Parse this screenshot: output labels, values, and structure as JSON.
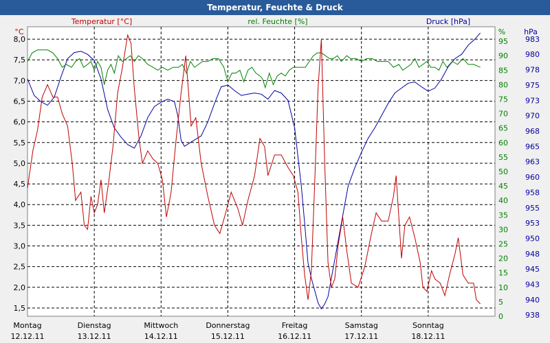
{
  "title": "Temperatur, Feuchte & Druck",
  "colors": {
    "titlebar": "#295a99",
    "temperature": "#c00000",
    "humidity": "#008000",
    "pressure": "#0000a0",
    "grid": "#000000",
    "text": "#000000"
  },
  "chart_data": {
    "type": "line",
    "title": "Temperatur, Feuchte & Druck",
    "grid": true,
    "x_labels": [
      {
        "day": "Montag",
        "date": "12.12.11"
      },
      {
        "day": "Dienstag",
        "date": "13.12.11"
      },
      {
        "day": "Mittwoch",
        "date": "14.12.11"
      },
      {
        "day": "Donnerstag",
        "date": "15.12.11"
      },
      {
        "day": "Freitag",
        "date": "16.12.11"
      },
      {
        "day": "Samstag",
        "date": "17.12.11"
      },
      {
        "day": "Sonntag",
        "date": "18.12.11"
      }
    ],
    "x_range_days": [
      0,
      7
    ],
    "axes": {
      "temperature": {
        "label": "Temperatur [°C]",
        "unit": "°C",
        "range": [
          1.3,
          8.3
        ],
        "ticks": [
          "8,0",
          "7,5",
          "7,0",
          "6,5",
          "6,0",
          "5,5",
          "5,0",
          "4,5",
          "4,0",
          "3,5",
          "3,0",
          "2,5",
          "2,0",
          "1,5"
        ],
        "tick_values": [
          8.0,
          7.5,
          7.0,
          6.5,
          6.0,
          5.5,
          5.0,
          4.5,
          4.0,
          3.5,
          3.0,
          2.5,
          2.0,
          1.5
        ]
      },
      "humidity": {
        "label": "rel. Feuchte [%]",
        "unit": "%",
        "range": [
          0,
          100
        ],
        "ticks": [
          "95",
          "90",
          "85",
          "80",
          "75",
          "70",
          "65",
          "60",
          "55",
          "50",
          "45",
          "40",
          "35",
          "30",
          "25",
          "20",
          "15",
          "10",
          "5",
          "0"
        ],
        "tick_values": [
          95,
          90,
          85,
          80,
          75,
          70,
          65,
          60,
          55,
          50,
          45,
          40,
          35,
          30,
          25,
          20,
          15,
          10,
          5,
          0
        ]
      },
      "pressure": {
        "label": "Druck [hPa]",
        "unit": "hPa",
        "range": [
          937.8,
          985
        ],
        "ticks": [
          "983",
          "980",
          "978",
          "975",
          "973",
          "970",
          "968",
          "965",
          "963",
          "960",
          "958",
          "955",
          "953",
          "950",
          "948",
          "945",
          "943",
          "940",
          "938"
        ],
        "tick_values": [
          983,
          980.5,
          978,
          975.5,
          973,
          970.5,
          968,
          965.5,
          963,
          960.5,
          958,
          955.5,
          953,
          950.5,
          948,
          945.5,
          943,
          940.5,
          938
        ]
      }
    },
    "series": [
      {
        "name": "Temperatur [°C]",
        "axis": "temperature",
        "points": [
          [
            0,
            4.4
          ],
          [
            0.08,
            5.3
          ],
          [
            0.15,
            5.8
          ],
          [
            0.22,
            6.6
          ],
          [
            0.3,
            6.9
          ],
          [
            0.38,
            6.6
          ],
          [
            0.45,
            6.6
          ],
          [
            0.52,
            6.2
          ],
          [
            0.6,
            5.9
          ],
          [
            0.67,
            5.0
          ],
          [
            0.72,
            4.1
          ],
          [
            0.8,
            4.3
          ],
          [
            0.85,
            3.5
          ],
          [
            0.9,
            3.4
          ],
          [
            0.95,
            4.2
          ],
          [
            1.0,
            3.8
          ],
          [
            1.05,
            4.0
          ],
          [
            1.1,
            4.6
          ],
          [
            1.15,
            3.8
          ],
          [
            1.22,
            4.6
          ],
          [
            1.28,
            5.4
          ],
          [
            1.35,
            6.7
          ],
          [
            1.42,
            7.3
          ],
          [
            1.5,
            8.1
          ],
          [
            1.55,
            7.9
          ],
          [
            1.6,
            6.8
          ],
          [
            1.67,
            5.6
          ],
          [
            1.72,
            5.0
          ],
          [
            1.8,
            5.3
          ],
          [
            1.88,
            5.1
          ],
          [
            1.95,
            5.0
          ],
          [
            2.02,
            4.6
          ],
          [
            2.08,
            3.7
          ],
          [
            2.15,
            4.3
          ],
          [
            2.22,
            5.5
          ],
          [
            2.3,
            6.7
          ],
          [
            2.37,
            7.6
          ],
          [
            2.45,
            5.9
          ],
          [
            2.52,
            6.1
          ],
          [
            2.6,
            5.0
          ],
          [
            2.7,
            4.2
          ],
          [
            2.8,
            3.5
          ],
          [
            2.88,
            3.3
          ],
          [
            2.95,
            3.7
          ],
          [
            3.05,
            4.3
          ],
          [
            3.15,
            3.9
          ],
          [
            3.22,
            3.5
          ],
          [
            3.3,
            4.1
          ],
          [
            3.4,
            4.7
          ],
          [
            3.48,
            5.6
          ],
          [
            3.55,
            5.4
          ],
          [
            3.6,
            4.7
          ],
          [
            3.7,
            5.2
          ],
          [
            3.8,
            5.2
          ],
          [
            3.9,
            4.9
          ],
          [
            3.98,
            4.7
          ],
          [
            4.05,
            4.3
          ],
          [
            4.1,
            3.2
          ],
          [
            4.15,
            2.3
          ],
          [
            4.2,
            1.7
          ],
          [
            4.25,
            2.4
          ],
          [
            4.3,
            4.5
          ],
          [
            4.35,
            6.8
          ],
          [
            4.4,
            8.0
          ],
          [
            4.45,
            5.0
          ],
          [
            4.5,
            2.6
          ],
          [
            4.55,
            2.0
          ],
          [
            4.6,
            2.2
          ],
          [
            4.65,
            3.0
          ],
          [
            4.72,
            3.7
          ],
          [
            4.78,
            2.9
          ],
          [
            4.85,
            2.1
          ],
          [
            4.95,
            2.0
          ],
          [
            5.05,
            2.5
          ],
          [
            5.15,
            3.3
          ],
          [
            5.22,
            3.8
          ],
          [
            5.3,
            3.6
          ],
          [
            5.4,
            3.6
          ],
          [
            5.48,
            4.2
          ],
          [
            5.52,
            4.7
          ],
          [
            5.6,
            2.7
          ],
          [
            5.65,
            3.5
          ],
          [
            5.72,
            3.7
          ],
          [
            5.8,
            3.2
          ],
          [
            5.88,
            2.6
          ],
          [
            5.92,
            2.0
          ],
          [
            5.98,
            1.9
          ],
          [
            6.05,
            2.4
          ],
          [
            6.1,
            2.2
          ],
          [
            6.18,
            2.1
          ],
          [
            6.25,
            1.8
          ],
          [
            6.32,
            2.3
          ],
          [
            6.4,
            2.8
          ],
          [
            6.45,
            3.2
          ],
          [
            6.52,
            2.3
          ],
          [
            6.6,
            2.1
          ],
          [
            6.68,
            2.1
          ],
          [
            6.72,
            1.7
          ],
          [
            6.78,
            1.6
          ]
        ]
      },
      {
        "name": "rel. Feuchte [%]",
        "axis": "humidity",
        "points": [
          [
            0,
            88
          ],
          [
            0.07,
            91
          ],
          [
            0.15,
            92
          ],
          [
            0.22,
            92
          ],
          [
            0.3,
            92
          ],
          [
            0.38,
            91
          ],
          [
            0.45,
            89
          ],
          [
            0.52,
            86
          ],
          [
            0.58,
            87
          ],
          [
            0.66,
            86
          ],
          [
            0.72,
            88
          ],
          [
            0.78,
            89
          ],
          [
            0.84,
            86
          ],
          [
            0.9,
            87
          ],
          [
            0.95,
            88
          ],
          [
            1.0,
            85
          ],
          [
            1.05,
            88
          ],
          [
            1.1,
            86
          ],
          [
            1.15,
            80
          ],
          [
            1.2,
            85
          ],
          [
            1.25,
            87
          ],
          [
            1.3,
            84
          ],
          [
            1.36,
            90
          ],
          [
            1.42,
            88
          ],
          [
            1.48,
            89
          ],
          [
            1.54,
            90
          ],
          [
            1.6,
            88
          ],
          [
            1.66,
            90
          ],
          [
            1.72,
            89
          ],
          [
            1.8,
            87
          ],
          [
            1.88,
            86
          ],
          [
            1.95,
            85
          ],
          [
            2.02,
            86
          ],
          [
            2.1,
            85
          ],
          [
            2.18,
            86
          ],
          [
            2.26,
            86
          ],
          [
            2.32,
            87
          ],
          [
            2.38,
            84
          ],
          [
            2.44,
            88
          ],
          [
            2.5,
            86
          ],
          [
            2.56,
            87
          ],
          [
            2.62,
            88
          ],
          [
            2.7,
            88
          ],
          [
            2.78,
            89
          ],
          [
            2.86,
            89
          ],
          [
            2.94,
            86
          ],
          [
            3.0,
            81
          ],
          [
            3.06,
            84
          ],
          [
            3.12,
            84
          ],
          [
            3.18,
            85
          ],
          [
            3.24,
            81
          ],
          [
            3.3,
            85
          ],
          [
            3.36,
            86
          ],
          [
            3.42,
            84
          ],
          [
            3.48,
            83
          ],
          [
            3.52,
            82
          ],
          [
            3.56,
            79
          ],
          [
            3.62,
            84
          ],
          [
            3.68,
            80
          ],
          [
            3.74,
            83
          ],
          [
            3.8,
            84
          ],
          [
            3.86,
            83
          ],
          [
            3.92,
            85
          ],
          [
            3.98,
            86
          ],
          [
            4.04,
            86
          ],
          [
            4.1,
            86
          ],
          [
            4.16,
            86
          ],
          [
            4.22,
            88
          ],
          [
            4.28,
            90
          ],
          [
            4.34,
            91
          ],
          [
            4.4,
            91
          ],
          [
            4.46,
            90
          ],
          [
            4.52,
            89
          ],
          [
            4.58,
            89
          ],
          [
            4.64,
            90
          ],
          [
            4.7,
            88
          ],
          [
            4.78,
            90
          ],
          [
            4.84,
            89
          ],
          [
            4.92,
            89
          ],
          [
            5.0,
            88
          ],
          [
            5.08,
            89
          ],
          [
            5.16,
            89
          ],
          [
            5.24,
            88
          ],
          [
            5.32,
            88
          ],
          [
            5.4,
            88
          ],
          [
            5.48,
            86
          ],
          [
            5.56,
            87
          ],
          [
            5.62,
            85
          ],
          [
            5.68,
            86
          ],
          [
            5.74,
            87
          ],
          [
            5.8,
            89
          ],
          [
            5.86,
            86
          ],
          [
            5.92,
            87
          ],
          [
            5.98,
            88
          ],
          [
            6.04,
            86
          ],
          [
            6.1,
            86
          ],
          [
            6.16,
            85
          ],
          [
            6.22,
            88
          ],
          [
            6.28,
            86
          ],
          [
            6.36,
            88
          ],
          [
            6.44,
            87
          ],
          [
            6.52,
            89
          ],
          [
            6.6,
            87
          ],
          [
            6.68,
            87
          ],
          [
            6.78,
            86
          ]
        ]
      },
      {
        "name": "Druck [hPa]",
        "axis": "pressure",
        "points": [
          [
            0,
            976.5
          ],
          [
            0.1,
            973.8
          ],
          [
            0.2,
            972.8
          ],
          [
            0.3,
            972.2
          ],
          [
            0.4,
            973.5
          ],
          [
            0.5,
            976.8
          ],
          [
            0.6,
            979.8
          ],
          [
            0.7,
            980.8
          ],
          [
            0.8,
            981.0
          ],
          [
            0.9,
            980.5
          ],
          [
            1.0,
            979.5
          ],
          [
            1.1,
            976.5
          ],
          [
            1.2,
            971.5
          ],
          [
            1.3,
            968.5
          ],
          [
            1.4,
            967.0
          ],
          [
            1.5,
            965.8
          ],
          [
            1.6,
            965.2
          ],
          [
            1.7,
            967.2
          ],
          [
            1.8,
            970.2
          ],
          [
            1.9,
            972.0
          ],
          [
            2.0,
            972.7
          ],
          [
            2.1,
            973.2
          ],
          [
            2.2,
            972.8
          ],
          [
            2.25,
            970.5
          ],
          [
            2.3,
            966.5
          ],
          [
            2.35,
            965.5
          ],
          [
            2.45,
            966.2
          ],
          [
            2.6,
            967.2
          ],
          [
            2.7,
            969.5
          ],
          [
            2.8,
            972.5
          ],
          [
            2.9,
            975.2
          ],
          [
            3.0,
            975.5
          ],
          [
            3.1,
            974.6
          ],
          [
            3.2,
            973.8
          ],
          [
            3.3,
            974.0
          ],
          [
            3.4,
            974.2
          ],
          [
            3.5,
            974.0
          ],
          [
            3.6,
            973.2
          ],
          [
            3.7,
            974.6
          ],
          [
            3.8,
            974.2
          ],
          [
            3.9,
            973.0
          ],
          [
            4.0,
            968.5
          ],
          [
            4.1,
            959.0
          ],
          [
            4.15,
            953.0
          ],
          [
            4.2,
            946.5
          ],
          [
            4.25,
            944.0
          ],
          [
            4.3,
            942.0
          ],
          [
            4.35,
            940.0
          ],
          [
            4.4,
            939.0
          ],
          [
            4.45,
            939.8
          ],
          [
            4.5,
            941.0
          ],
          [
            4.6,
            947.0
          ],
          [
            4.7,
            953.0
          ],
          [
            4.8,
            959.0
          ],
          [
            4.9,
            962.0
          ],
          [
            5.0,
            964.5
          ],
          [
            5.1,
            966.8
          ],
          [
            5.2,
            968.5
          ],
          [
            5.3,
            970.5
          ],
          [
            5.4,
            972.5
          ],
          [
            5.5,
            974.2
          ],
          [
            5.6,
            975.0
          ],
          [
            5.7,
            975.8
          ],
          [
            5.8,
            976.0
          ],
          [
            5.9,
            975.2
          ],
          [
            6.0,
            974.5
          ],
          [
            6.1,
            975.0
          ],
          [
            6.2,
            976.5
          ],
          [
            6.3,
            978.5
          ],
          [
            6.4,
            979.8
          ],
          [
            6.5,
            980.5
          ],
          [
            6.6,
            982.0
          ],
          [
            6.7,
            983.0
          ],
          [
            6.78,
            984.0
          ]
        ]
      }
    ]
  }
}
